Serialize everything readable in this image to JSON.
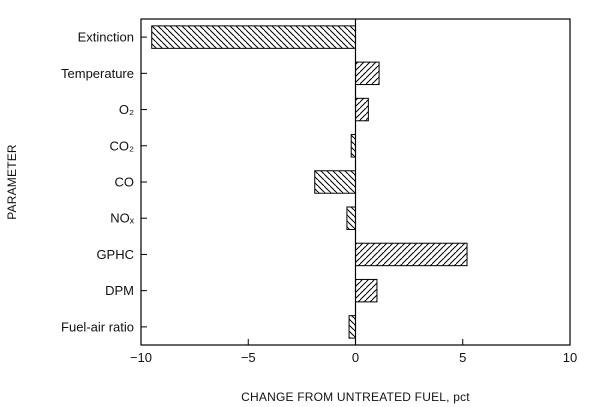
{
  "chart_data": {
    "type": "bar",
    "orientation": "horizontal",
    "categories": [
      "Extinction",
      "Temperature",
      "O₂",
      "CO₂",
      "CO",
      "NOₓ",
      "GPHC",
      "DPM",
      "Fuel-air ratio"
    ],
    "values": [
      -9.5,
      1.1,
      0.6,
      -0.2,
      -1.9,
      -0.4,
      5.2,
      1.0,
      -0.3
    ],
    "xlabel": "CHANGE FROM UNTREATED FUEL, pct",
    "ylabel": "PARAMETER",
    "xlim": [
      -10,
      10
    ],
    "xticks": [
      -10,
      -5,
      0,
      5,
      10
    ],
    "grid": false,
    "legend": "none",
    "bar_fill": "diagonal hatch, black on white"
  }
}
